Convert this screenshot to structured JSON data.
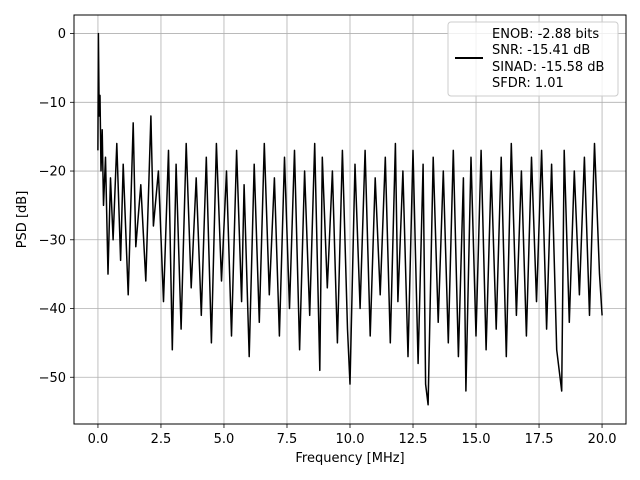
{
  "chart_data": {
    "type": "line",
    "xlabel": "Frequency [MHz]",
    "ylabel": "PSD [dB]",
    "xlim": [
      -0.95,
      20.95
    ],
    "ylim": [
      -56.8,
      2.7
    ],
    "xticks": [
      0.0,
      2.5,
      5.0,
      7.5,
      10.0,
      12.5,
      15.0,
      17.5,
      20.0
    ],
    "xtick_labels": [
      "0.0",
      "2.5",
      "5.0",
      "7.5",
      "10.0",
      "12.5",
      "15.0",
      "17.5",
      "20.0"
    ],
    "yticks": [
      0,
      -10,
      -20,
      -30,
      -40,
      -50
    ],
    "ytick_labels": [
      "0",
      "−10",
      "−20",
      "−30",
      "−40",
      "−50"
    ],
    "grid": true,
    "legend_position": "top-right",
    "series": [
      {
        "color": "#000000",
        "x": [
          0.0,
          0.02,
          0.05,
          0.08,
          0.12,
          0.17,
          0.22,
          0.3,
          0.4,
          0.5,
          0.6,
          0.75,
          0.9,
          1.0,
          1.2,
          1.4,
          1.5,
          1.7,
          1.9,
          2.1,
          2.2,
          2.4,
          2.6,
          2.8,
          2.95,
          3.1,
          3.3,
          3.5,
          3.7,
          3.9,
          4.1,
          4.3,
          4.5,
          4.7,
          4.9,
          5.1,
          5.3,
          5.5,
          5.7,
          5.8,
          6.0,
          6.2,
          6.4,
          6.6,
          6.8,
          7.0,
          7.2,
          7.4,
          7.6,
          7.8,
          8.0,
          8.2,
          8.4,
          8.6,
          8.8,
          8.9,
          9.1,
          9.3,
          9.5,
          9.7,
          9.9,
          10.0,
          10.2,
          10.4,
          10.6,
          10.8,
          11.0,
          11.2,
          11.4,
          11.6,
          11.8,
          11.9,
          12.1,
          12.3,
          12.5,
          12.7,
          12.9,
          13.0,
          13.1,
          13.3,
          13.5,
          13.7,
          13.9,
          14.1,
          14.3,
          14.5,
          14.6,
          14.8,
          15.0,
          15.2,
          15.4,
          15.6,
          15.8,
          16.0,
          16.2,
          16.4,
          16.6,
          16.8,
          17.0,
          17.2,
          17.4,
          17.6,
          17.8,
          18.0,
          18.2,
          18.4,
          18.5,
          18.7,
          18.9,
          19.1,
          19.3,
          19.5,
          19.7,
          19.9,
          20.0
        ],
        "y": [
          -17,
          0,
          -12,
          -9,
          -20,
          -14,
          -25,
          -18,
          -35,
          -21,
          -30,
          -16,
          -33,
          -19,
          -38,
          -13,
          -31,
          -22,
          -36,
          -12,
          -28,
          -20,
          -39,
          -17,
          -46,
          -19,
          -43,
          -16,
          -37,
          -21,
          -41,
          -18,
          -45,
          -16,
          -36,
          -20,
          -44,
          -17,
          -39,
          -22,
          -47,
          -19,
          -42,
          -16,
          -38,
          -21,
          -44,
          -18,
          -40,
          -17,
          -46,
          -20,
          -41,
          -16,
          -49,
          -18,
          -37,
          -20,
          -45,
          -17,
          -43,
          -51,
          -19,
          -40,
          -17,
          -44,
          -21,
          -38,
          -18,
          -45,
          -16,
          -39,
          -20,
          -47,
          -17,
          -48,
          -19,
          -51,
          -54,
          -18,
          -42,
          -20,
          -45,
          -17,
          -47,
          -21,
          -52,
          -18,
          -44,
          -17,
          -46,
          -20,
          -43,
          -18,
          -47,
          -16,
          -41,
          -20,
          -44,
          -18,
          -39,
          -17,
          -43,
          -19,
          -46,
          -52,
          -17,
          -42,
          -20,
          -38,
          -18,
          -41,
          -16,
          -35,
          -41
        ]
      }
    ],
    "legend": {
      "entries": [
        "ENOB: -2.88 bits",
        "SNR: -15.41 dB",
        "SINAD: -15.58 dB",
        "SFDR: 1.01"
      ]
    }
  }
}
